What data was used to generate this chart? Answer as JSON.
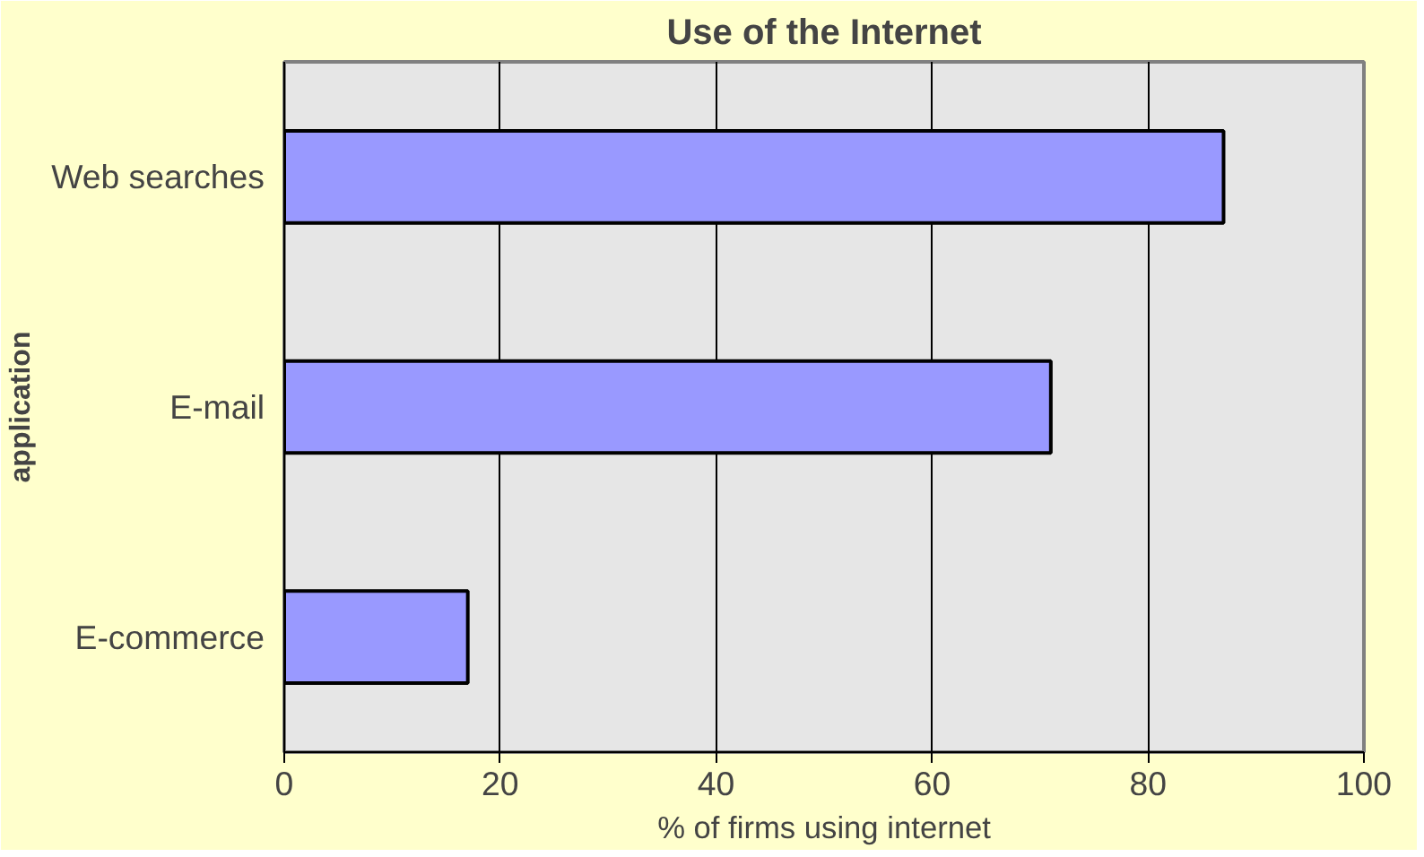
{
  "chart_data": {
    "type": "bar",
    "orientation": "horizontal",
    "title": "Use of the Internet",
    "xlabel": "% of firms using internet",
    "ylabel": "application",
    "categories": [
      "Web searches",
      "E-mail",
      "E-commerce"
    ],
    "values": [
      87,
      71,
      17
    ],
    "color": "#9999ff",
    "xlim": [
      0,
      100
    ],
    "xticks": [
      0,
      20,
      40,
      60,
      80,
      100
    ],
    "grid": "x"
  }
}
